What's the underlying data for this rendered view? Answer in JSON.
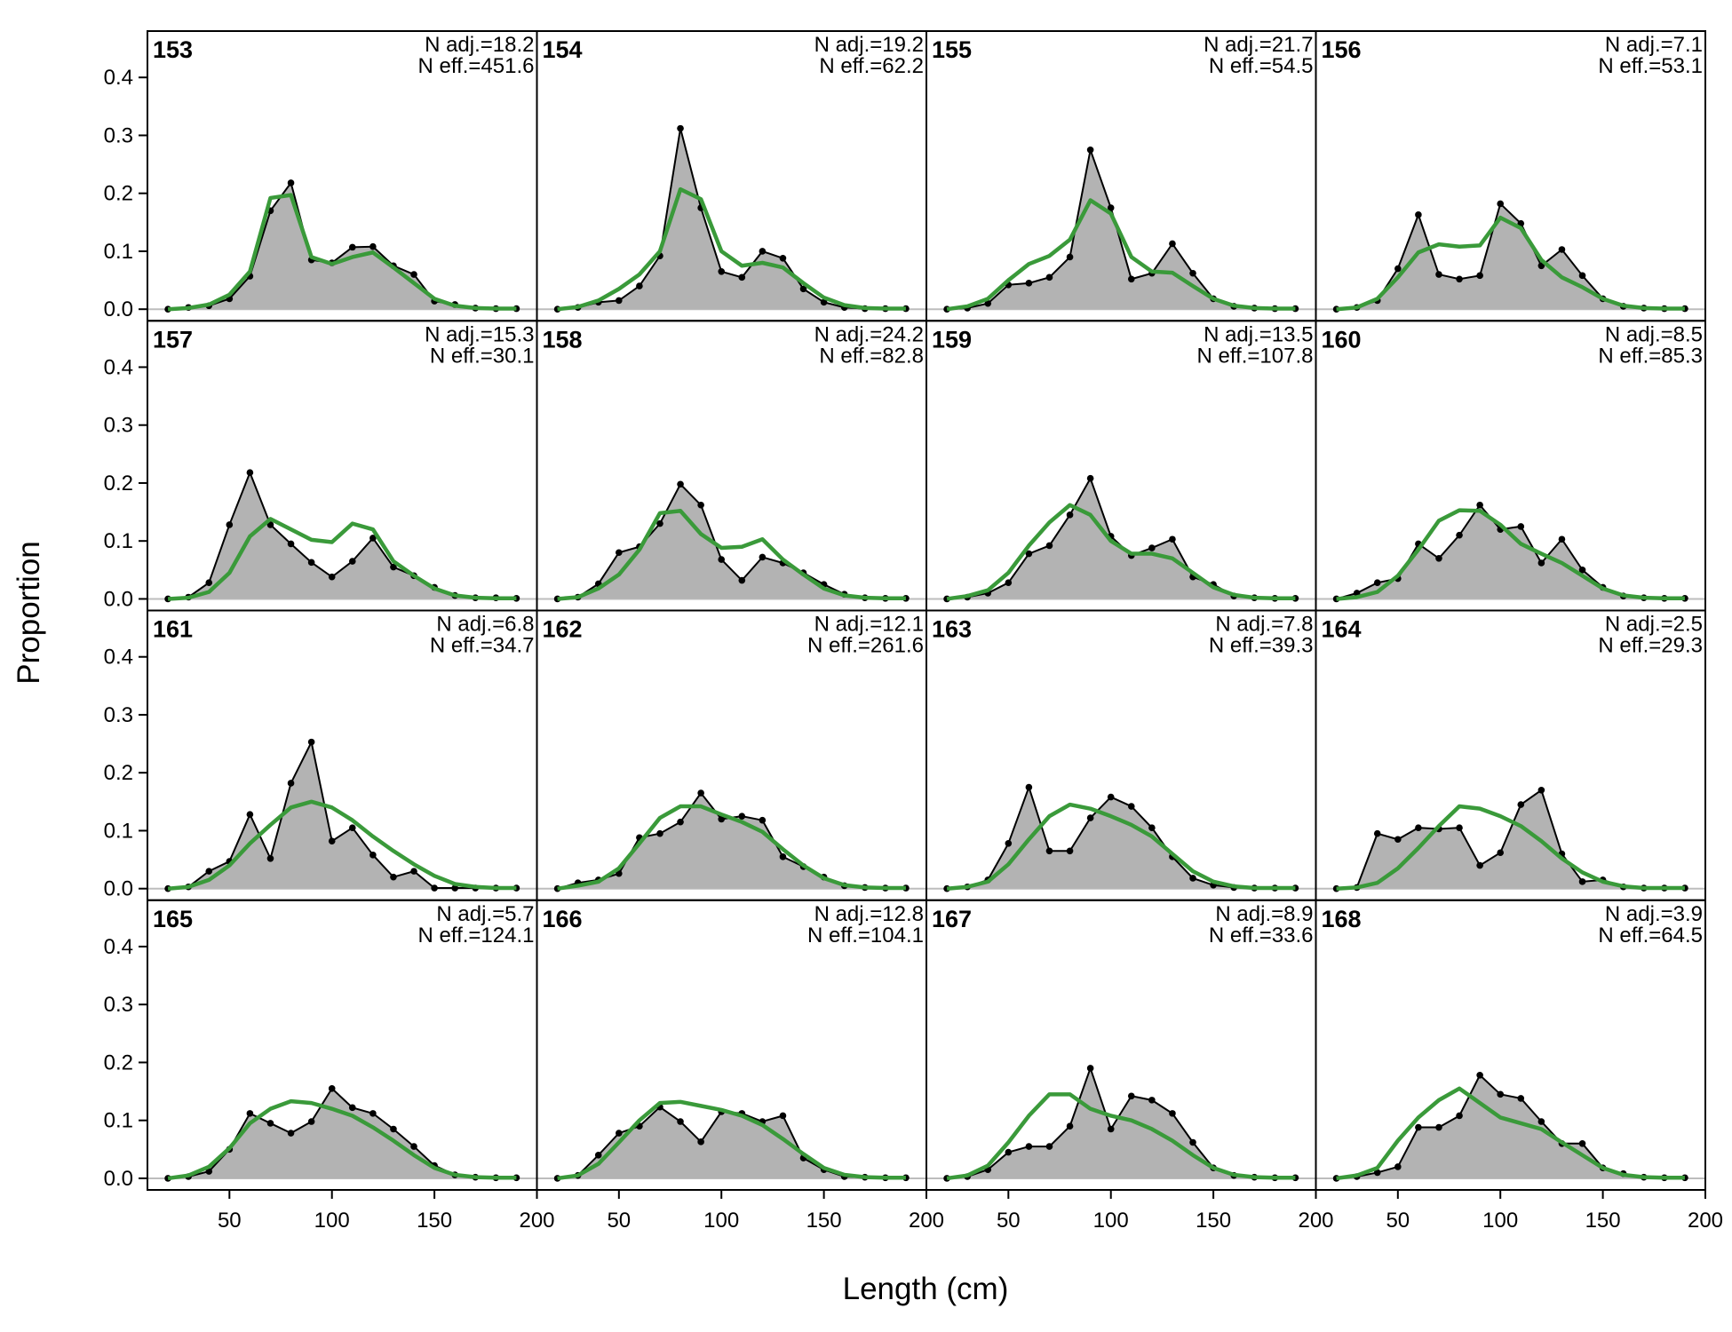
{
  "chart_data": {
    "type": "area",
    "xlabel": "Length (cm)",
    "ylabel": "Proportion",
    "xlim": [
      10,
      200
    ],
    "ylim": [
      -0.02,
      0.48
    ],
    "x_ticks": [
      50,
      100,
      150,
      200
    ],
    "y_ticks": [
      0.0,
      0.1,
      0.2,
      0.3,
      0.4
    ],
    "x_tick_labels": [
      "50",
      "100",
      "150",
      "200"
    ],
    "y_tick_labels": [
      "0.0",
      "0.1",
      "0.2",
      "0.3",
      "0.4"
    ],
    "x": [
      20,
      30,
      40,
      50,
      60,
      70,
      80,
      90,
      100,
      110,
      120,
      130,
      140,
      150,
      160,
      170,
      180,
      190
    ],
    "colors": {
      "observed_fill": "#b3b3b3",
      "observed_line": "#000000",
      "expected_line": "#3a9a3a",
      "zero_line": "#bdbdbd"
    },
    "panels": [
      {
        "label": "153",
        "n_adj": "N adj.=18.2",
        "n_eff": "N eff.=451.6",
        "observed": [
          0,
          0.003,
          0.006,
          0.018,
          0.057,
          0.17,
          0.218,
          0.085,
          0.08,
          0.107,
          0.108,
          0.075,
          0.06,
          0.014,
          0.008,
          0.002,
          0.001,
          0.001
        ],
        "expected": [
          0,
          0.002,
          0.008,
          0.025,
          0.065,
          0.192,
          0.197,
          0.09,
          0.078,
          0.09,
          0.098,
          0.072,
          0.045,
          0.018,
          0.006,
          0.002,
          0.001,
          0.001
        ]
      },
      {
        "label": "157",
        "n_adj": "N adj.=15.3",
        "n_eff": "N eff.=30.1",
        "observed": [
          0,
          0.003,
          0.028,
          0.128,
          0.218,
          0.128,
          0.095,
          0.063,
          0.038,
          0.065,
          0.105,
          0.055,
          0.04,
          0.02,
          0.006,
          0.002,
          0.002,
          0.001
        ],
        "expected": [
          0,
          0.002,
          0.012,
          0.045,
          0.108,
          0.138,
          0.12,
          0.102,
          0.098,
          0.13,
          0.12,
          0.065,
          0.04,
          0.018,
          0.006,
          0.002,
          0.001,
          0.001
        ]
      },
      {
        "label": "161",
        "n_adj": "N adj.=6.8",
        "n_eff": "N eff.=34.7",
        "observed": [
          0,
          0.003,
          0.03,
          0.047,
          0.128,
          0.052,
          0.182,
          0.253,
          0.082,
          0.105,
          0.058,
          0.02,
          0.03,
          0.001,
          0.001,
          0.001,
          0.001,
          0.001
        ],
        "expected": [
          0,
          0.003,
          0.015,
          0.04,
          0.078,
          0.11,
          0.14,
          0.15,
          0.14,
          0.118,
          0.09,
          0.065,
          0.042,
          0.022,
          0.008,
          0.003,
          0.001,
          0.001
        ]
      },
      {
        "label": "165",
        "n_adj": "N adj.=5.7",
        "n_eff": "N eff.=124.1",
        "observed": [
          0,
          0.003,
          0.012,
          0.05,
          0.112,
          0.095,
          0.078,
          0.098,
          0.155,
          0.122,
          0.112,
          0.085,
          0.055,
          0.022,
          0.006,
          0.002,
          0.001,
          0.001
        ],
        "expected": [
          0,
          0.005,
          0.02,
          0.052,
          0.095,
          0.12,
          0.133,
          0.13,
          0.12,
          0.108,
          0.088,
          0.065,
          0.04,
          0.018,
          0.006,
          0.002,
          0.001,
          0.001
        ]
      },
      {
        "label": "154",
        "n_adj": "N adj.=19.2",
        "n_eff": "N eff.=62.2",
        "observed": [
          0,
          0.003,
          0.012,
          0.015,
          0.04,
          0.092,
          0.312,
          0.175,
          0.065,
          0.055,
          0.1,
          0.088,
          0.035,
          0.012,
          0.003,
          0.001,
          0.001,
          0.001
        ],
        "expected": [
          0,
          0.004,
          0.015,
          0.035,
          0.06,
          0.1,
          0.207,
          0.19,
          0.1,
          0.075,
          0.08,
          0.072,
          0.045,
          0.02,
          0.007,
          0.002,
          0.001,
          0.001
        ]
      },
      {
        "label": "158",
        "n_adj": "N adj.=24.2",
        "n_eff": "N eff.=82.8",
        "observed": [
          0,
          0.003,
          0.026,
          0.08,
          0.09,
          0.13,
          0.198,
          0.162,
          0.068,
          0.032,
          0.072,
          0.062,
          0.045,
          0.025,
          0.008,
          0.002,
          0.001,
          0.001
        ],
        "expected": [
          0,
          0.003,
          0.018,
          0.042,
          0.085,
          0.148,
          0.152,
          0.112,
          0.088,
          0.09,
          0.103,
          0.068,
          0.042,
          0.018,
          0.006,
          0.002,
          0.001,
          0.001
        ]
      },
      {
        "label": "162",
        "n_adj": "N adj.=12.1",
        "n_eff": "N eff.=261.6",
        "observed": [
          0,
          0.01,
          0.015,
          0.026,
          0.088,
          0.095,
          0.115,
          0.165,
          0.12,
          0.125,
          0.118,
          0.055,
          0.038,
          0.02,
          0.005,
          0.002,
          0.001,
          0.001
        ],
        "expected": [
          0,
          0.005,
          0.012,
          0.035,
          0.078,
          0.122,
          0.142,
          0.142,
          0.128,
          0.115,
          0.098,
          0.068,
          0.04,
          0.018,
          0.006,
          0.002,
          0.001,
          0.001
        ]
      },
      {
        "label": "166",
        "n_adj": "N adj.=12.8",
        "n_eff": "N eff.=104.1",
        "observed": [
          0,
          0.005,
          0.04,
          0.078,
          0.09,
          0.123,
          0.098,
          0.063,
          0.115,
          0.112,
          0.098,
          0.108,
          0.035,
          0.015,
          0.003,
          0.002,
          0.001,
          0.001
        ],
        "expected": [
          0,
          0.005,
          0.025,
          0.062,
          0.1,
          0.13,
          0.132,
          0.125,
          0.118,
          0.108,
          0.092,
          0.068,
          0.042,
          0.018,
          0.006,
          0.002,
          0.001,
          0.001
        ]
      },
      {
        "label": "155",
        "n_adj": "N adj.=21.7",
        "n_eff": "N eff.=54.5",
        "observed": [
          0,
          0.002,
          0.01,
          0.042,
          0.045,
          0.055,
          0.09,
          0.275,
          0.175,
          0.052,
          0.062,
          0.113,
          0.062,
          0.018,
          0.005,
          0.002,
          0.001,
          0.001
        ],
        "expected": [
          0,
          0.005,
          0.018,
          0.05,
          0.078,
          0.092,
          0.12,
          0.188,
          0.165,
          0.09,
          0.065,
          0.063,
          0.04,
          0.018,
          0.006,
          0.002,
          0.001,
          0.001
        ]
      },
      {
        "label": "159",
        "n_adj": "N adj.=13.5",
        "n_eff": "N eff.=107.8",
        "observed": [
          0,
          0.003,
          0.01,
          0.028,
          0.078,
          0.092,
          0.145,
          0.208,
          0.108,
          0.075,
          0.088,
          0.103,
          0.038,
          0.025,
          0.005,
          0.002,
          0.001,
          0.001
        ],
        "expected": [
          0,
          0.005,
          0.015,
          0.045,
          0.092,
          0.132,
          0.162,
          0.145,
          0.1,
          0.078,
          0.078,
          0.07,
          0.045,
          0.02,
          0.007,
          0.002,
          0.001,
          0.001
        ]
      },
      {
        "label": "163",
        "n_adj": "N adj.=7.8",
        "n_eff": "N eff.=39.3",
        "observed": [
          0,
          0.003,
          0.015,
          0.078,
          0.175,
          0.065,
          0.065,
          0.122,
          0.158,
          0.142,
          0.105,
          0.055,
          0.018,
          0.006,
          0.002,
          0.001,
          0.001,
          0.001
        ],
        "expected": [
          0,
          0.003,
          0.012,
          0.042,
          0.085,
          0.125,
          0.145,
          0.138,
          0.125,
          0.11,
          0.09,
          0.06,
          0.03,
          0.012,
          0.004,
          0.001,
          0.001,
          0.001
        ]
      },
      {
        "label": "167",
        "n_adj": "N adj.=8.9",
        "n_eff": "N eff.=33.6",
        "observed": [
          0,
          0.003,
          0.015,
          0.045,
          0.055,
          0.055,
          0.09,
          0.19,
          0.085,
          0.142,
          0.135,
          0.112,
          0.062,
          0.018,
          0.005,
          0.002,
          0.001,
          0.001
        ],
        "expected": [
          0,
          0.005,
          0.022,
          0.062,
          0.108,
          0.145,
          0.145,
          0.12,
          0.108,
          0.1,
          0.085,
          0.065,
          0.04,
          0.018,
          0.006,
          0.002,
          0.001,
          0.001
        ]
      },
      {
        "label": "156",
        "n_adj": "N adj.=7.1",
        "n_eff": "N eff.=53.1",
        "observed": [
          0,
          0.003,
          0.015,
          0.07,
          0.163,
          0.06,
          0.052,
          0.058,
          0.182,
          0.148,
          0.075,
          0.103,
          0.058,
          0.018,
          0.005,
          0.002,
          0.001,
          0.001
        ],
        "expected": [
          0,
          0.003,
          0.018,
          0.055,
          0.098,
          0.112,
          0.108,
          0.11,
          0.158,
          0.14,
          0.085,
          0.055,
          0.038,
          0.018,
          0.006,
          0.002,
          0.001,
          0.001
        ]
      },
      {
        "label": "160",
        "n_adj": "N adj.=8.5",
        "n_eff": "N eff.=85.3",
        "observed": [
          0,
          0.01,
          0.028,
          0.035,
          0.095,
          0.07,
          0.11,
          0.162,
          0.12,
          0.125,
          0.062,
          0.103,
          0.05,
          0.02,
          0.005,
          0.002,
          0.001,
          0.001
        ],
        "expected": [
          0,
          0.003,
          0.012,
          0.04,
          0.085,
          0.135,
          0.153,
          0.152,
          0.128,
          0.095,
          0.078,
          0.062,
          0.04,
          0.018,
          0.006,
          0.002,
          0.001,
          0.001
        ]
      },
      {
        "label": "164",
        "n_adj": "N adj.=2.5",
        "n_eff": "N eff.=29.3",
        "observed": [
          0,
          0.002,
          0.095,
          0.085,
          0.105,
          0.103,
          0.105,
          0.04,
          0.062,
          0.145,
          0.17,
          0.06,
          0.012,
          0.015,
          0.003,
          0.001,
          0.001,
          0.001
        ],
        "expected": [
          0,
          0.002,
          0.01,
          0.035,
          0.07,
          0.108,
          0.142,
          0.138,
          0.125,
          0.108,
          0.082,
          0.052,
          0.028,
          0.012,
          0.004,
          0.001,
          0.001,
          0.001
        ]
      },
      {
        "label": "168",
        "n_adj": "N adj.=3.9",
        "n_eff": "N eff.=64.5",
        "observed": [
          0,
          0.003,
          0.01,
          0.02,
          0.088,
          0.088,
          0.108,
          0.178,
          0.145,
          0.138,
          0.098,
          0.06,
          0.06,
          0.018,
          0.008,
          0.002,
          0.001,
          0.001
        ],
        "expected": [
          0,
          0.005,
          0.018,
          0.065,
          0.105,
          0.135,
          0.155,
          0.13,
          0.105,
          0.095,
          0.085,
          0.062,
          0.04,
          0.018,
          0.006,
          0.002,
          0.001,
          0.001
        ]
      }
    ],
    "grid": false,
    "legend": "none"
  }
}
